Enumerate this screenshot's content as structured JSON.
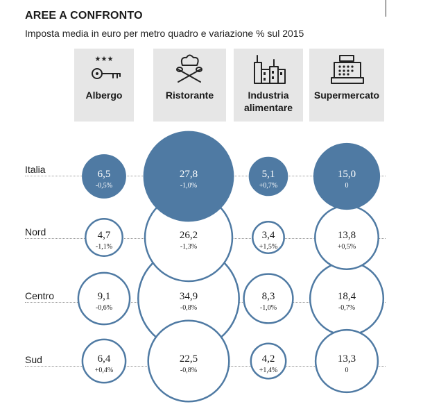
{
  "title": "AREE A CONFRONTO",
  "subtitle": "Imposta media in euro per metro quadro e variazione % sul 2015",
  "columns": [
    {
      "label": "Albergo",
      "icon": "hotel-key-icon"
    },
    {
      "label": "Ristorante",
      "icon": "chef-hat-utensils-icon"
    },
    {
      "label": "Industria alimentare",
      "icon": "factory-icon"
    },
    {
      "label": "Supermercato",
      "icon": "cash-register-icon"
    }
  ],
  "rows": [
    "Italia",
    "Nord",
    "Centro",
    "Sud"
  ],
  "colors": {
    "highlight": "#4f7aa3",
    "outline": "#4f7aa3",
    "header_bg": "#e6e6e6"
  },
  "chart_data": {
    "type": "bubble-matrix",
    "title": "AREE A CONFRONTO",
    "subtitle": "Imposta media in euro per metro quadro e variazione % sul 2015",
    "categories": [
      "Albergo",
      "Ristorante",
      "Industria alimentare",
      "Supermercato"
    ],
    "series": [
      {
        "name": "Italia",
        "values": [
          6.5,
          27.8,
          5.1,
          15.0
        ],
        "labels": [
          "6,5",
          "27,8",
          "5,1",
          "15,0"
        ],
        "changes": [
          "-0,5%",
          "-1,0%",
          "+0,7%",
          "0"
        ],
        "filled": true
      },
      {
        "name": "Nord",
        "values": [
          4.7,
          26.2,
          3.4,
          13.8
        ],
        "labels": [
          "4,7",
          "26,2",
          "3,4",
          "13,8"
        ],
        "changes": [
          "-1,1%",
          "-1,3%",
          "+1,5%",
          "+0,5%"
        ],
        "filled": false
      },
      {
        "name": "Centro",
        "values": [
          9.1,
          34.9,
          8.3,
          18.4
        ],
        "labels": [
          "9,1",
          "34,9",
          "8,3",
          "18,4"
        ],
        "changes": [
          "-0,6%",
          "-0,8%",
          "-1,0%",
          "-0,7%"
        ],
        "filled": false
      },
      {
        "name": "Sud",
        "values": [
          6.4,
          22.5,
          4.2,
          13.3
        ],
        "labels": [
          "6,4",
          "22,5",
          "4,2",
          "13,3"
        ],
        "changes": [
          "+0,4%",
          "-0,8%",
          "+1,4%",
          "0"
        ],
        "filled": false
      }
    ]
  }
}
